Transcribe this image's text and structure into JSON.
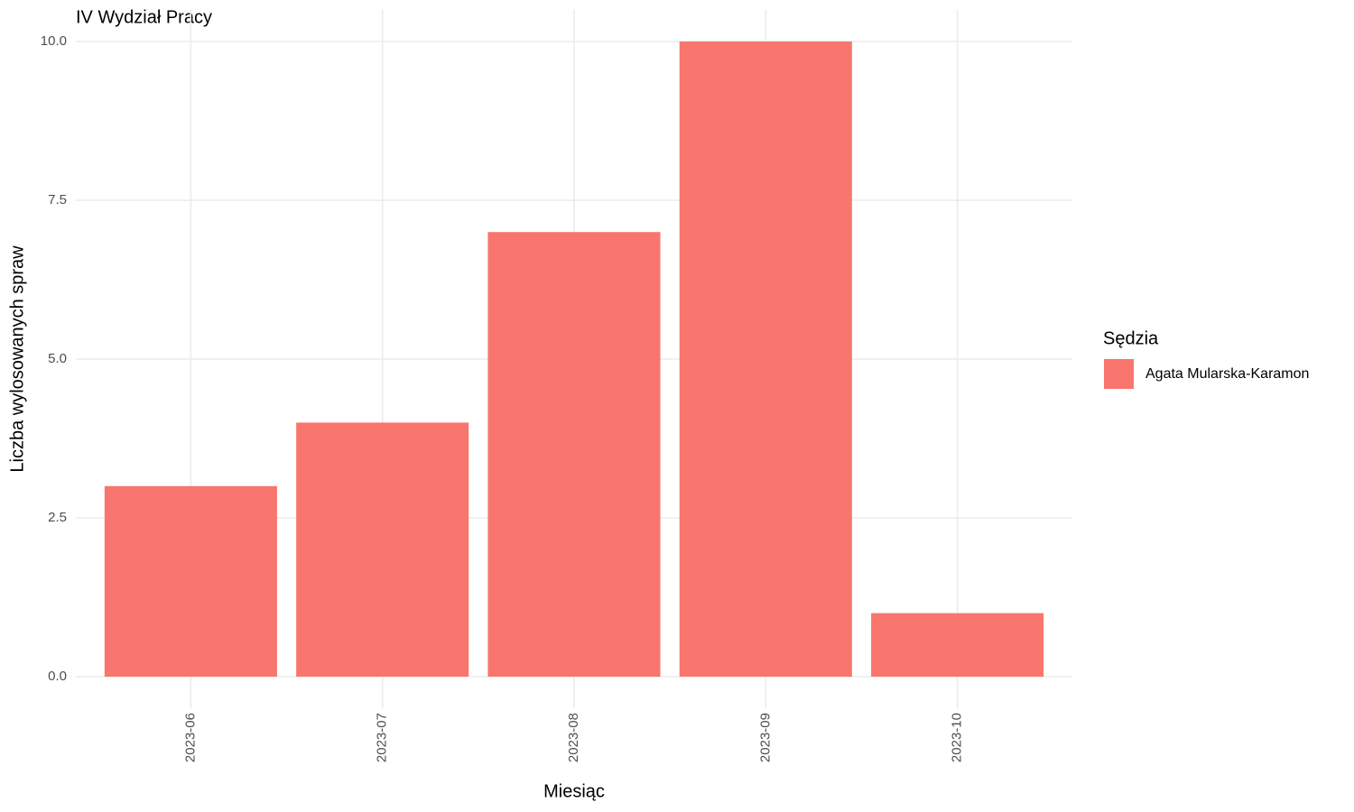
{
  "chart_data": {
    "type": "bar",
    "title": "IV Wydział Pracy",
    "x_label": "Miesiąc",
    "y_label": "Liczba wylosowanych spraw",
    "legend_title": "Sędzia",
    "legend_position": "right",
    "categories": [
      "2023-06",
      "2023-07",
      "2023-08",
      "2023-09",
      "2023-10"
    ],
    "series": [
      {
        "name": "Agata Mularska-Karamon",
        "color": "#F8766D",
        "values": [
          3,
          4,
          7,
          10,
          1
        ]
      }
    ],
    "ylim": [
      -0.5,
      10.5
    ],
    "yticks": [
      {
        "value": 0,
        "label": "0.0"
      },
      2.5,
      {
        "value": 5,
        "label": "5.0"
      },
      7.5,
      {
        "value": 10,
        "label": "10.0"
      }
    ],
    "grid": true
  }
}
